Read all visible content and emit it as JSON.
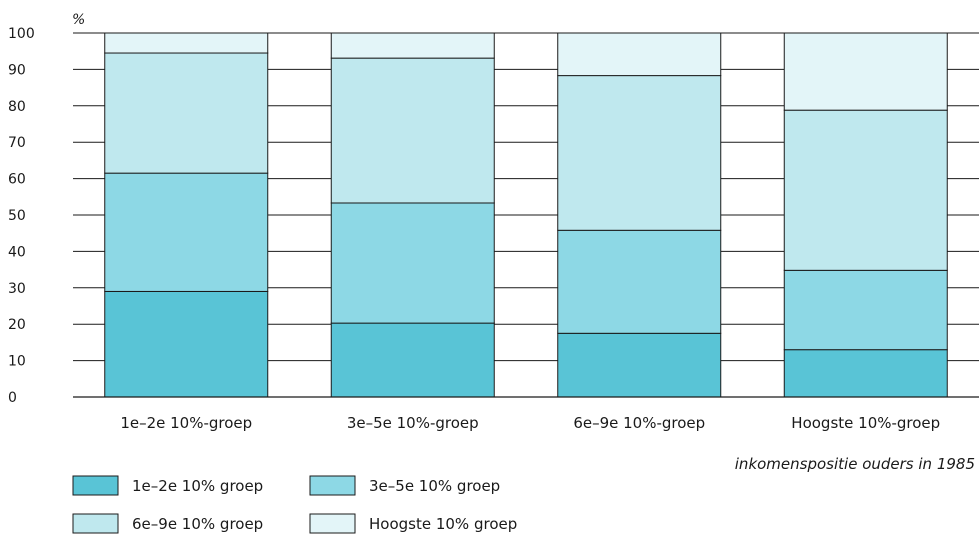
{
  "chart_data": {
    "type": "bar",
    "stacked": true,
    "unit_label": "%",
    "ylim": [
      0,
      100
    ],
    "yticks": [
      0,
      10,
      20,
      30,
      40,
      50,
      60,
      70,
      80,
      90,
      100
    ],
    "grid": true,
    "categories": [
      "1e–2e 10%-groep",
      "3e–5e 10%-groep",
      "6e–9e 10%-groep",
      "Hoogste 10%-groep"
    ],
    "xlabel": "inkomenspositie ouders in 1985",
    "series": [
      {
        "name": "1e–2e 10% groep",
        "color": "#59c4d6",
        "values": [
          29,
          20.3,
          17.5,
          13
        ]
      },
      {
        "name": "3e–5e 10% groep",
        "color": "#8dd8e5",
        "values": [
          32.5,
          33,
          28.3,
          21.8
        ]
      },
      {
        "name": "6e–9e 10% groep",
        "color": "#bfe8ee",
        "values": [
          33,
          39.8,
          42.5,
          44
        ]
      },
      {
        "name": "Hoogste 10% groep",
        "color": "#e3f5f8",
        "values": [
          5.5,
          6.9,
          11.7,
          21.2
        ]
      }
    ],
    "legend_position": "bottom-left"
  }
}
